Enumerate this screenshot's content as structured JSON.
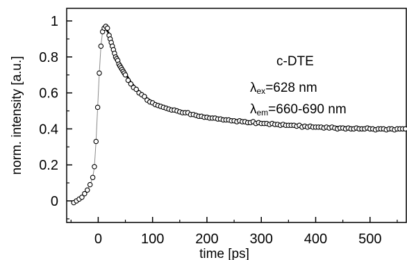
{
  "chart_data": {
    "type": "scatter",
    "xlabel": "time [ps]",
    "ylabel": "norm. intensity [a.u.]",
    "xlim": [
      -58,
      568
    ],
    "ylim": [
      -0.12,
      1.07
    ],
    "xticks": [
      0,
      100,
      200,
      300,
      400,
      500
    ],
    "xtick_labels": [
      "0",
      "100",
      "200",
      "300",
      "400",
      "500"
    ],
    "yticks": [
      0,
      0.2,
      0.4,
      0.6,
      0.8,
      1
    ],
    "ytick_labels": [
      "0",
      "0.2",
      "0.4",
      "0.6",
      "0.8",
      "1"
    ],
    "grid": false,
    "legend": "none",
    "annotations": {
      "sample": "c-DTE",
      "ex_lambda": "λ",
      "ex_sub": "ex",
      "ex_value": "=628 nm",
      "em_lambda": "λ",
      "em_sub": "em",
      "em_value": "=660-690 nm"
    },
    "series": [
      {
        "style": "open circles with thin connecting line",
        "x": [
          -45,
          -40,
          -35,
          -30,
          -25,
          -20,
          -15,
          -10,
          -7,
          -4,
          -1,
          2,
          5,
          8,
          11,
          14,
          17,
          20,
          22,
          24,
          26,
          28,
          30,
          32,
          34,
          36,
          38,
          40,
          42,
          44,
          46,
          48,
          50,
          55,
          60,
          65,
          70,
          75,
          80,
          85,
          90,
          95,
          100,
          105,
          110,
          115,
          120,
          125,
          130,
          135,
          140,
          145,
          150,
          155,
          160,
          165,
          170,
          175,
          180,
          185,
          190,
          195,
          200,
          205,
          210,
          215,
          220,
          225,
          230,
          235,
          240,
          245,
          250,
          255,
          260,
          265,
          270,
          275,
          280,
          285,
          290,
          295,
          300,
          305,
          310,
          315,
          320,
          325,
          330,
          335,
          340,
          345,
          350,
          355,
          360,
          365,
          370,
          375,
          380,
          385,
          390,
          395,
          400,
          405,
          410,
          415,
          420,
          425,
          430,
          435,
          440,
          445,
          450,
          455,
          460,
          465,
          470,
          475,
          480,
          485,
          490,
          495,
          500,
          505,
          510,
          515,
          520,
          525,
          530,
          535,
          540,
          545,
          550,
          555,
          560,
          565
        ],
        "y": [
          -0.01,
          0,
          0.01,
          0.02,
          0.04,
          0.06,
          0.09,
          0.13,
          0.19,
          0.33,
          0.52,
          0.71,
          0.86,
          0.94,
          0.96,
          0.97,
          0.96,
          0.92,
          0.9,
          0.88,
          0.86,
          0.84,
          0.82,
          0.8,
          0.79,
          0.78,
          0.76,
          0.75,
          0.74,
          0.73,
          0.72,
          0.71,
          0.7,
          0.67,
          0.65,
          0.63,
          0.62,
          0.6,
          0.59,
          0.58,
          0.56,
          0.55,
          0.545,
          0.535,
          0.53,
          0.525,
          0.52,
          0.515,
          0.51,
          0.505,
          0.505,
          0.5,
          0.495,
          0.49,
          0.49,
          0.49,
          0.48,
          0.48,
          0.475,
          0.47,
          0.47,
          0.465,
          0.465,
          0.46,
          0.46,
          0.46,
          0.455,
          0.455,
          0.45,
          0.45,
          0.45,
          0.445,
          0.445,
          0.44,
          0.445,
          0.44,
          0.44,
          0.435,
          0.435,
          0.44,
          0.43,
          0.435,
          0.43,
          0.43,
          0.43,
          0.425,
          0.43,
          0.425,
          0.425,
          0.42,
          0.425,
          0.42,
          0.42,
          0.42,
          0.42,
          0.415,
          0.42,
          0.41,
          0.415,
          0.41,
          0.415,
          0.41,
          0.41,
          0.41,
          0.41,
          0.405,
          0.41,
          0.405,
          0.41,
          0.405,
          0.4,
          0.405,
          0.405,
          0.4,
          0.405,
          0.4,
          0.4,
          0.405,
          0.4,
          0.4,
          0.4,
          0.405,
          0.4,
          0.4,
          0.395,
          0.4,
          0.4,
          0.4,
          0.395,
          0.4,
          0.4,
          0.395,
          0.4,
          0.4,
          0.4,
          0.4
        ],
        "fit_x": [
          12,
          20,
          30,
          40,
          50,
          60,
          70,
          80,
          90,
          100,
          120,
          140,
          160,
          180,
          200,
          230,
          260,
          300,
          350,
          400,
          450,
          500,
          568
        ],
        "fit_y": [
          0.965,
          0.93,
          0.83,
          0.76,
          0.71,
          0.66,
          0.625,
          0.595,
          0.57,
          0.55,
          0.52,
          0.505,
          0.49,
          0.48,
          0.47,
          0.455,
          0.445,
          0.435,
          0.425,
          0.415,
          0.41,
          0.405,
          0.4
        ]
      }
    ]
  }
}
